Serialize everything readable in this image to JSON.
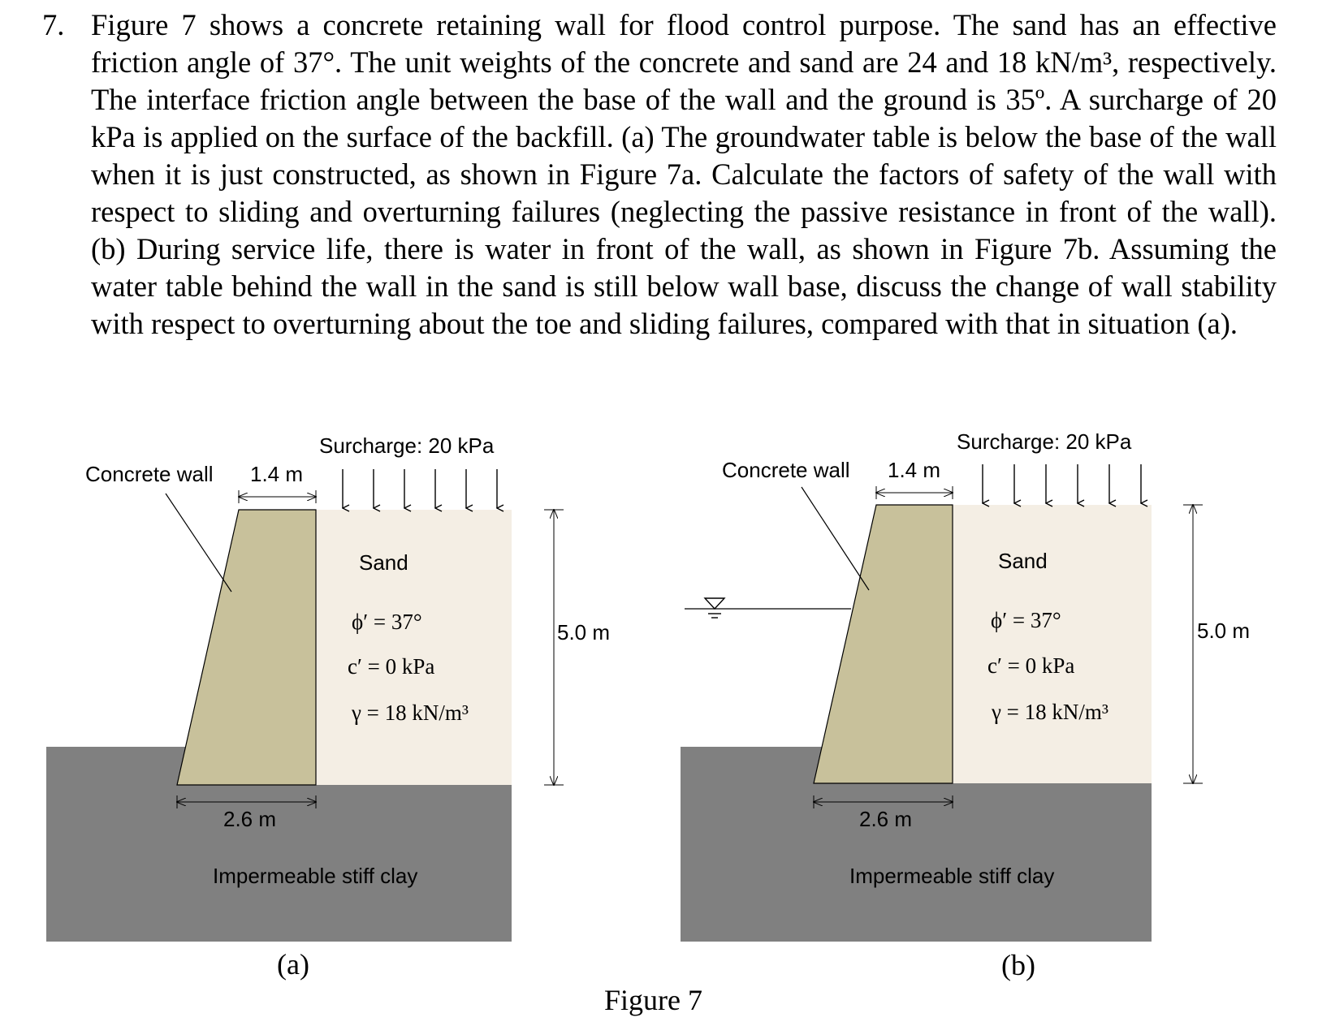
{
  "question": {
    "number": "7.",
    "text": "Figure 7 shows a concrete retaining wall for flood control purpose. The sand has an effective friction angle of 37°. The unit weights of the concrete and sand are 24 and 18 kN/m³, respectively. The interface friction angle between the base of the wall and the ground is 35º. A surcharge of 20 kPa is applied on the surface of the backfill. (a) The groundwater table is below the base of the wall when it is just constructed, as shown in Figure 7a. Calculate the factors of safety of the wall with respect to sliding and overturning failures (neglecting the passive resistance in front of the wall). (b) During service life, there is water in front of the wall, as shown in Figure 7b. Assuming the water table behind the wall in the sand is still below wall base, discuss the change of wall stability with respect to overturning about the toe and sliding failures, compared with that in situation (a)."
  },
  "figure_a": {
    "surcharge_label": "Surcharge: 20 kPa",
    "wall_label": "Concrete wall",
    "top_width": "1.4 m",
    "base_width": "2.6 m",
    "height": "5.0 m",
    "soil_name": "Sand",
    "phi": "ϕ′ = 37°",
    "c": "c′ = 0 kPa",
    "gamma": "γ = 18 kN/m³",
    "foundation": "Impermeable stiff clay",
    "caption": "(a)"
  },
  "figure_b": {
    "surcharge_label": "Surcharge: 20 kPa",
    "wall_label": "Concrete wall",
    "top_width": "1.4 m",
    "base_width": "2.6 m",
    "height": "5.0 m",
    "soil_name": "Sand",
    "phi": "ϕ′ = 37°",
    "c": "c′ = 0 kPa",
    "gamma": "γ = 18 kN/m³",
    "foundation": "Impermeable stiff clay",
    "caption": "(b)"
  },
  "figure_caption": "Figure 7",
  "colors": {
    "concrete": "#c8c19b",
    "sand": "#f4eee4",
    "clay": "#808080",
    "line": "#000000"
  }
}
